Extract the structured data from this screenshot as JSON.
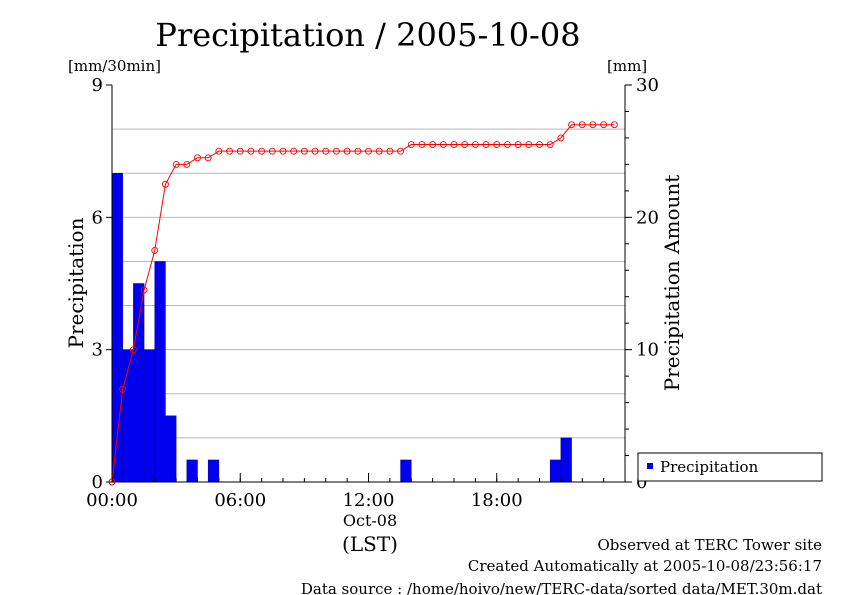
{
  "chart_data": {
    "type": "bar",
    "title": "Precipitation / 2005-10-08",
    "ylabel_left": "Precipitation",
    "ylabel_right": "Precipitation Amount",
    "yunit_left": "[mm/30min]",
    "yunit_right": "[mm]",
    "ylim_left": [
      0,
      9
    ],
    "ylim_right": [
      0,
      30
    ],
    "yticks_left": [
      "0",
      "3",
      "6",
      "9"
    ],
    "yticks_right": [
      "0",
      "10",
      "20",
      "30"
    ],
    "x_ticks": [
      {
        "hour": 0,
        "label": "00:00"
      },
      {
        "hour": 6,
        "label": "06:00"
      },
      {
        "hour": 12,
        "label": "12:00"
      },
      {
        "hour": 18,
        "label": "18:00"
      }
    ],
    "x_date_label": "Oct-08",
    "x_axis_label": "(LST)",
    "xlim_hours": [
      0,
      24
    ],
    "grid": true,
    "legend": {
      "placement": "bottom-right",
      "entries": [
        "Precipitation"
      ]
    },
    "series": [
      {
        "name": "Precipitation",
        "type": "bar",
        "axis": "left",
        "color": "#0000ee",
        "bin_minutes": 30,
        "values": [
          7.0,
          3.0,
          4.5,
          3.0,
          5.0,
          1.5,
          0,
          0.5,
          0,
          0.5,
          0,
          0,
          0,
          0,
          0,
          0,
          0,
          0,
          0,
          0,
          0,
          0,
          0,
          0,
          0,
          0,
          0,
          0.5,
          0,
          0,
          0,
          0,
          0,
          0,
          0,
          0,
          0,
          0,
          0,
          0,
          0,
          0.5,
          1.0,
          0,
          0,
          0,
          0,
          0
        ]
      },
      {
        "name": "Precipitation Amount",
        "type": "line",
        "axis": "right",
        "color": "#ff0000",
        "x_hours": [
          0,
          0.5,
          1,
          1.5,
          2,
          2.5,
          3,
          3.5,
          4,
          4.5,
          5,
          5.5,
          6,
          6.5,
          7,
          7.5,
          8,
          8.5,
          9,
          9.5,
          10,
          10.5,
          11,
          11.5,
          12,
          12.5,
          13,
          13.5,
          14,
          14.5,
          15,
          15.5,
          16,
          16.5,
          17,
          17.5,
          18,
          18.5,
          19,
          19.5,
          20,
          20.5,
          21,
          21.5,
          22,
          22.5,
          23,
          23.5
        ],
        "values": [
          0,
          7.0,
          10.0,
          14.5,
          17.5,
          22.5,
          24.0,
          24.0,
          24.5,
          24.5,
          25.0,
          25.0,
          25.0,
          25.0,
          25.0,
          25.0,
          25.0,
          25.0,
          25.0,
          25.0,
          25.0,
          25.0,
          25.0,
          25.0,
          25.0,
          25.0,
          25.0,
          25.0,
          25.5,
          25.5,
          25.5,
          25.5,
          25.5,
          25.5,
          25.5,
          25.5,
          25.5,
          25.5,
          25.5,
          25.5,
          25.5,
          25.5,
          26.0,
          27.0,
          27.0,
          27.0,
          27.0,
          27.0
        ]
      }
    ]
  },
  "footer": {
    "line1": "Observed at TERC Tower site",
    "line2": "Created Automatically at 2005-10-08/23:56:17",
    "line3": "Data source : /home/hoivo/new/TERC-data/sorted  data/MET.30m.dat"
  }
}
